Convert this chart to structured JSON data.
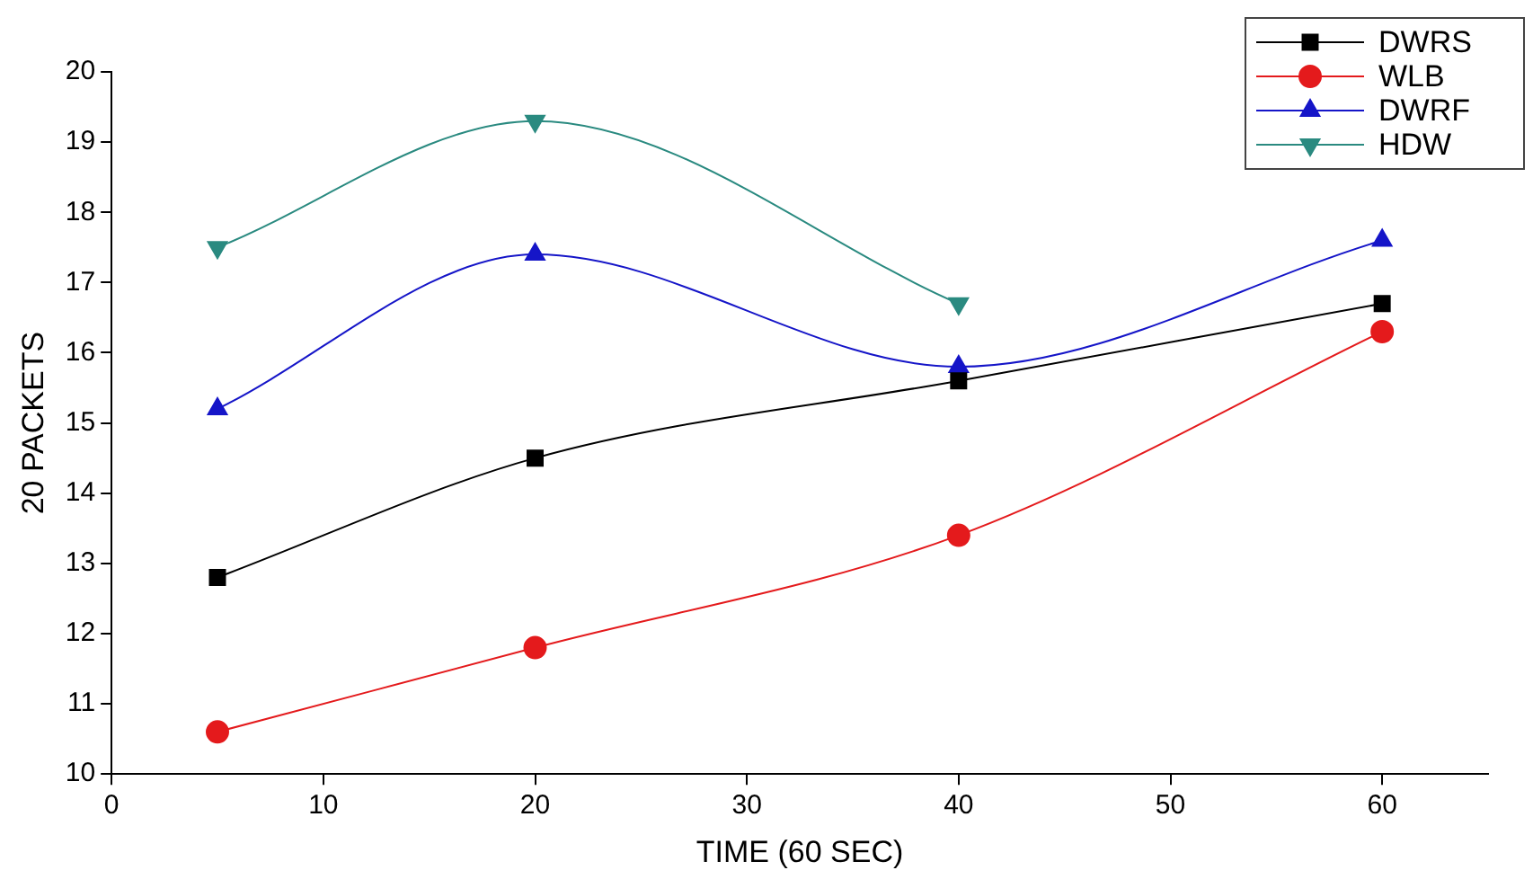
{
  "chart_data": {
    "type": "line",
    "xlabel": "TIME (60 SEC)",
    "ylabel": "20 PACKETS",
    "x": [
      5,
      20,
      40,
      60
    ],
    "xlim": [
      0,
      65
    ],
    "xticks": [
      0,
      10,
      20,
      30,
      40,
      50,
      60
    ],
    "ylim": [
      10,
      20
    ],
    "yticks": [
      10,
      11,
      12,
      13,
      14,
      15,
      16,
      17,
      18,
      19,
      20
    ],
    "grid": false,
    "legend": "top right",
    "series": [
      {
        "name": "DWRS",
        "color": "#000000",
        "marker": "square",
        "values": [
          12.8,
          14.5,
          15.6,
          16.7
        ]
      },
      {
        "name": "WLB",
        "color": "#e41a1c",
        "marker": "circle",
        "values": [
          10.6,
          11.8,
          13.4,
          16.3
        ]
      },
      {
        "name": "DWRF",
        "color": "#1515c8",
        "marker": "triangle",
        "values": [
          15.2,
          17.4,
          15.8,
          17.6
        ]
      },
      {
        "name": "HDW",
        "color": "#2a8a80",
        "marker": "triangle-down",
        "values": [
          17.5,
          19.3,
          16.7,
          null
        ]
      }
    ]
  }
}
